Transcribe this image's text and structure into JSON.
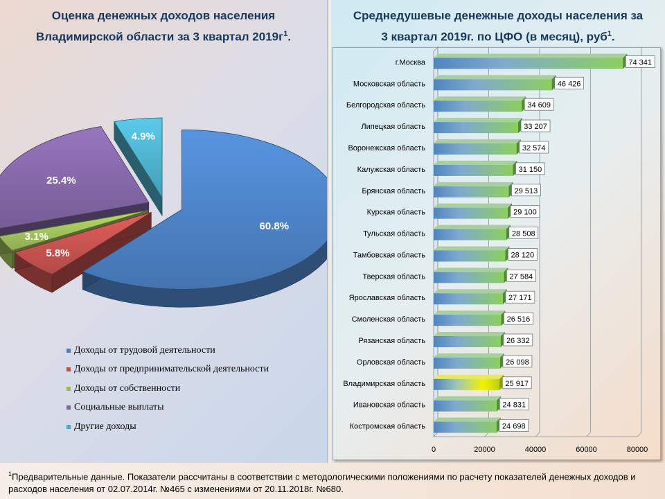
{
  "left_title": {
    "line1": "Оценка денежных доходов населения",
    "line2": "Владимирской области  за 3 квартал  2019г",
    "sup": "1",
    "end": "."
  },
  "right_title": {
    "line1": "Среднедушевые денежные доходы населения за",
    "line2": "3 квартал 2019г. по ЦФО (в месяц), руб",
    "sup": "1",
    "end": "."
  },
  "chart_data": [
    {
      "type": "pie",
      "title": "Оценка денежных доходов населения Владимирской области за 3 квартал 2019г1.",
      "slices": [
        {
          "label": "Доходы от трудовой деятельности",
          "value": 60.8,
          "value_label": "60.8%",
          "color": "#4a7ebf"
        },
        {
          "label": "Доходы от предпринимательской деятельности",
          "value": 5.8,
          "value_label": "5.8%",
          "color": "#c0504d"
        },
        {
          "label": "Доходы от собственности",
          "value": 3.1,
          "value_label": "3.1%",
          "color": "#9bbb59"
        },
        {
          "label": "Социальные выплаты",
          "value": 25.4,
          "value_label": "25.4%",
          "color": "#8064a2"
        },
        {
          "label": "Другие доходы",
          "value": 4.9,
          "value_label": "4.9%",
          "color": "#4bacc6"
        }
      ],
      "legend_position": "bottom"
    },
    {
      "type": "bar",
      "orientation": "horizontal",
      "title": "Среднедушевые денежные доходы населения за 3 квартал 2019г. по ЦФО (в месяц), руб1.",
      "categories": [
        "г.Москва",
        "Московская область",
        "Белгородская область",
        "Липецкая область",
        "Воронежская область",
        "Калужская область",
        "Брянская область",
        "Курская область",
        "Тульская область",
        "Тамбовская область",
        "Тверская область",
        "Ярославская область",
        "Смоленская область",
        "Рязанская область",
        "Орловская область",
        "Владимирская область",
        "Ивановская область",
        "Костромская область"
      ],
      "values": [
        74341,
        46426,
        34609,
        33207,
        32574,
        31150,
        29513,
        29100,
        28508,
        28120,
        27584,
        27171,
        26516,
        26332,
        26098,
        25917,
        24831,
        24698
      ],
      "value_labels": [
        "74 341",
        "46 426",
        "34 609",
        "33 207",
        "32 574",
        "31 150",
        "29 513",
        "29 100",
        "28 508",
        "28 120",
        "27 584",
        "27 171",
        "26 516",
        "26 332",
        "26 098",
        "25 917",
        "24 831",
        "24 698"
      ],
      "highlight": "Владимирская область",
      "xlim": [
        0,
        80000
      ],
      "xticks": [
        "0",
        "20000",
        "40000",
        "60000",
        "80000"
      ],
      "grid": true
    }
  ],
  "footnote": {
    "sup": "1",
    "text": "Предварительные данные. Показатели рассчитаны в соответствии с  методологическими положениями по расчету показателей денежных доходов и расходов населения от 02.07.2014г. №465 с изменениями от 20.11.2018г. №680."
  }
}
